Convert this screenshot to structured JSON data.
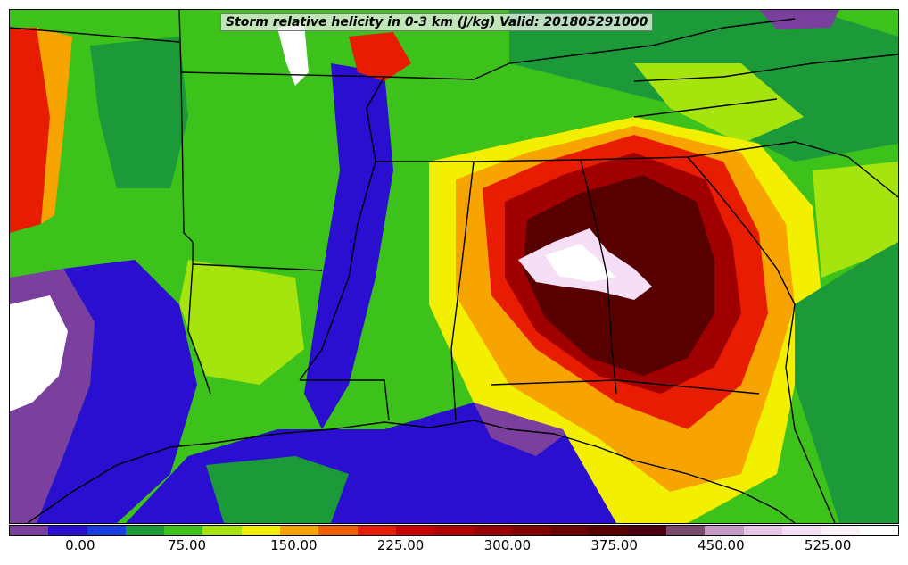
{
  "map": {
    "title": "Storm relative helicity in 0-3 km (J/kg) Valid: 201805291000",
    "icon": "weather-map-icon"
  },
  "colorbar": {
    "colors": [
      "#7b3f9e",
      "#2a0fd0",
      "#1a3fe0",
      "#1c9a3a",
      "#3cc21a",
      "#a6e40e",
      "#f2ef00",
      "#f7a400",
      "#f05e00",
      "#e81c00",
      "#c80000",
      "#b00000",
      "#980000",
      "#820000",
      "#6a0000",
      "#580000",
      "#4a0010",
      "#7a4a6a",
      "#c89ac8",
      "#e8c8e8",
      "#f6def6",
      "#faf0fa",
      "#ffffff"
    ],
    "labels": [
      "0.00",
      "75.00",
      "150.00",
      "225.00",
      "300.00",
      "375.00",
      "450.00",
      "525.00"
    ],
    "label_positions": [
      0.08,
      0.2,
      0.32,
      0.44,
      0.56,
      0.68,
      0.8,
      0.92
    ]
  },
  "field_colors": {
    "very_low": "#7b3f9e",
    "low": "#2a0fd0",
    "moderate_low": "#1c9a3a",
    "moderate": "#3cc21a",
    "yellow_green": "#a6e40e",
    "yellow": "#f2ef00",
    "orange": "#f7a400",
    "red": "#e81c00",
    "dark_red": "#a00000",
    "maroon": "#580000",
    "pink": "#f6def6",
    "white": "#ffffff",
    "boundary": "#000000"
  }
}
